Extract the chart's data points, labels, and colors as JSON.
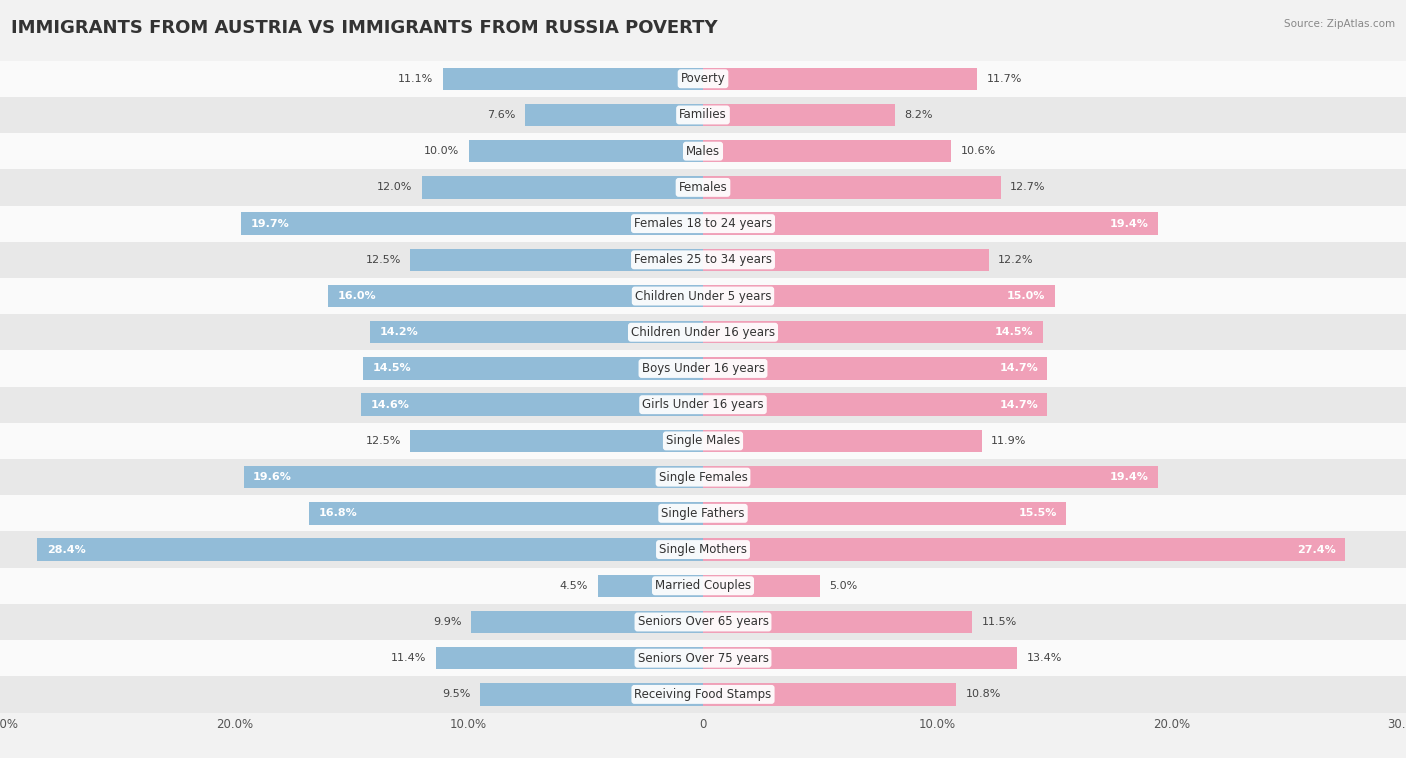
{
  "title": "IMMIGRANTS FROM AUSTRIA VS IMMIGRANTS FROM RUSSIA POVERTY",
  "source": "Source: ZipAtlas.com",
  "categories": [
    "Poverty",
    "Families",
    "Males",
    "Females",
    "Females 18 to 24 years",
    "Females 25 to 34 years",
    "Children Under 5 years",
    "Children Under 16 years",
    "Boys Under 16 years",
    "Girls Under 16 years",
    "Single Males",
    "Single Females",
    "Single Fathers",
    "Single Mothers",
    "Married Couples",
    "Seniors Over 65 years",
    "Seniors Over 75 years",
    "Receiving Food Stamps"
  ],
  "austria_values": [
    11.1,
    7.6,
    10.0,
    12.0,
    19.7,
    12.5,
    16.0,
    14.2,
    14.5,
    14.6,
    12.5,
    19.6,
    16.8,
    28.4,
    4.5,
    9.9,
    11.4,
    9.5
  ],
  "russia_values": [
    11.7,
    8.2,
    10.6,
    12.7,
    19.4,
    12.2,
    15.0,
    14.5,
    14.7,
    14.7,
    11.9,
    19.4,
    15.5,
    27.4,
    5.0,
    11.5,
    13.4,
    10.8
  ],
  "austria_color": "#92bcd8",
  "russia_color": "#f0a0b8",
  "austria_label": "Immigrants from Austria",
  "russia_label": "Immigrants from Russia",
  "axis_max": 30.0,
  "bar_height": 0.62,
  "background_color": "#f2f2f2",
  "row_bg_light": "#fafafa",
  "row_bg_dark": "#e8e8e8",
  "title_fontsize": 13,
  "label_fontsize": 8.5,
  "value_fontsize": 8,
  "tick_fontsize": 8.5
}
